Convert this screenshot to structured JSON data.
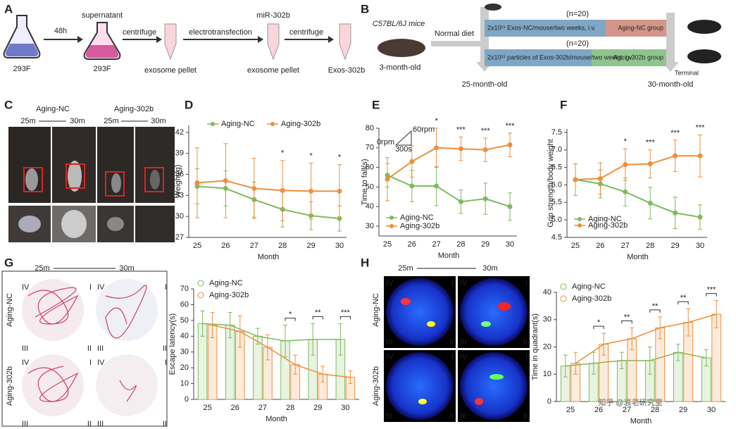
{
  "panel_a": {
    "label": "A",
    "flask1": "293F",
    "arrow1": "48h",
    "flask2_top": "supernatant",
    "flask2": "293F",
    "arrow2": "centrifuge",
    "tube1": "exosome pellet",
    "arrow3": "electrotransfection",
    "tube2_top": "miR-302b",
    "tube2": "exosome pellet",
    "arrow4": "centrifuge",
    "tube3": "Exos-302b"
  },
  "panel_b": {
    "label": "B",
    "strain": "C57BL/6J mice",
    "start_age": "3-month-old",
    "diet": "Normal diet",
    "n_nc": "(n=20)",
    "treat_nc": "2x10¹¹ Exos-NC/mouse/two weeks, i.v.",
    "group_nc": "Aging-NC group",
    "n_302b": "(n=20)",
    "treat_302b": "2x10¹¹ particles of Exos-302b/mouse/two weeks, i.v.",
    "group_302b": "Aging-302b group",
    "age_25": "25-month-old",
    "age_30": "30-month-old",
    "end": "Terminal"
  },
  "panel_c": {
    "label": "C",
    "group_nc": "Aging-NC",
    "group_302b": "Aging-302b",
    "t_start": "25m",
    "t_end": "30m"
  },
  "panel_g": {
    "label": "G",
    "t_start": "25m",
    "t_end": "30m",
    "row_nc": "Aging-NC",
    "row_302b": "Aging-302b",
    "quadrants": [
      "IV",
      "I",
      "III",
      "II"
    ]
  },
  "panel_h": {
    "label": "H",
    "t_start": "25m",
    "t_end": "30m",
    "row_nc": "Aging-NC",
    "row_302b": "Aging-302b",
    "quadrants": [
      "IV",
      "I",
      "III",
      "II"
    ]
  },
  "watermark": "知乎 @衰老研究室",
  "chart_data": [
    {
      "type": "line",
      "label": "D",
      "xlabel": "Month",
      "ylabel": "Weight(g)",
      "categories": [
        "25",
        "26",
        "27",
        "28",
        "29",
        "30"
      ],
      "ylim": [
        27,
        43
      ],
      "yticks": [
        27,
        30,
        33,
        36,
        39,
        42
      ],
      "legend": "upper center",
      "series": [
        {
          "name": "Aging-NC",
          "color": "#7dbb5c",
          "values": [
            34.3,
            34.0,
            32.4,
            31.0,
            30.1,
            29.7
          ],
          "errors": [
            2.5,
            2.5,
            2.5,
            2.5,
            2,
            1.8
          ]
        },
        {
          "name": "Aging-302b",
          "color": "#ee8f3c",
          "values": [
            34.8,
            35.1,
            34.0,
            33.7,
            33.6,
            33.6
          ],
          "errors": [
            5,
            5.3,
            4.3,
            4.3,
            4,
            3.8
          ]
        }
      ],
      "significance": [
        null,
        null,
        null,
        "*",
        "*",
        "*"
      ]
    },
    {
      "type": "line",
      "label": "E",
      "xlabel": "Month",
      "ylabel": "Time to fall(s)",
      "categories": [
        "25",
        "26",
        "27",
        "28",
        "29",
        "30"
      ],
      "ylim": [
        25,
        80
      ],
      "yticks": [
        30,
        40,
        50,
        60,
        70,
        80
      ],
      "legend": "lower left",
      "inset_labels": [
        "60rpm",
        "0rpm",
        "300s"
      ],
      "series": [
        {
          "name": "Aging-NC",
          "color": "#7dbb5c",
          "values": [
            56,
            50.5,
            50.5,
            42.5,
            44,
            40
          ],
          "errors": [
            6,
            8,
            10,
            6,
            8,
            7
          ]
        },
        {
          "name": "Aging-302b",
          "color": "#ee8f3c",
          "values": [
            54,
            63,
            70,
            69.5,
            69,
            71.5
          ],
          "errors": [
            11,
            8,
            10,
            6,
            6,
            6
          ]
        }
      ],
      "significance": [
        null,
        null,
        "*",
        "***",
        "***",
        "***"
      ]
    },
    {
      "type": "line",
      "label": "F",
      "xlabel": "Month",
      "ylabel": "Grip strength/body weight",
      "categories": [
        "25",
        "26",
        "27",
        "28",
        "29",
        "30"
      ],
      "ylim": [
        4.5,
        7.6
      ],
      "yticks": [
        {
          "value": 4.5,
          "label": "4.5"
        },
        {
          "value": 5,
          "label": "5.0"
        },
        {
          "value": 5.5,
          "label": "5.5"
        },
        {
          "value": 6,
          "label": "6.0"
        },
        {
          "value": 6.5,
          "label": "6.5"
        },
        {
          "value": 7,
          "label": "7.0"
        },
        {
          "value": 7.5,
          "label": "7.5"
        }
      ],
      "legend": "lower left",
      "series": [
        {
          "name": "Aging-NC",
          "color": "#7dbb5c",
          "values": [
            6.15,
            6.03,
            5.8,
            5.48,
            5.2,
            5.08
          ],
          "errors": [
            0.45,
            0.4,
            0.4,
            0.45,
            0.45,
            0.35
          ]
        },
        {
          "name": "Aging-302b",
          "color": "#ee8f3c",
          "values": [
            6.15,
            6.18,
            6.58,
            6.6,
            6.83,
            6.83
          ],
          "errors": [
            0.45,
            0.45,
            0.45,
            0.4,
            0.45,
            0.6
          ]
        }
      ],
      "significance": [
        null,
        null,
        "*",
        "***",
        "***",
        "***"
      ]
    },
    {
      "type": "bar",
      "xlabel": "Month",
      "ylabel": "Escape latency(s)",
      "categories": [
        "25",
        "26",
        "27",
        "28",
        "29",
        "30"
      ],
      "ylim": [
        0,
        70
      ],
      "yticks": [
        0,
        10,
        20,
        30,
        40,
        50,
        60,
        70
      ],
      "legend": "upper left",
      "series": [
        {
          "name": "Aging-NC",
          "color": "#7dbb5c",
          "values": [
            48,
            47,
            40,
            37,
            38,
            38
          ],
          "errors": [
            8,
            8,
            5,
            10,
            10,
            10
          ]
        },
        {
          "name": "Aging-302b",
          "color": "#ee8f3c",
          "values": [
            47,
            43,
            33,
            22,
            16,
            14
          ],
          "errors": [
            8,
            10,
            8,
            6,
            5,
            4
          ]
        }
      ],
      "significance": [
        null,
        null,
        null,
        "*",
        "**",
        "***"
      ]
    },
    {
      "type": "bar",
      "xlabel": "Month",
      "ylabel": "Time in quadrant(s)",
      "categories": [
        "25",
        "26",
        "27",
        "28",
        "29",
        "30"
      ],
      "ylim": [
        0,
        40
      ],
      "yticks": [
        0,
        10,
        20,
        30,
        40
      ],
      "legend": "upper left",
      "series": [
        {
          "name": "Aging-NC",
          "color": "#7dbb5c",
          "values": [
            13,
            14,
            15,
            15,
            18,
            16
          ],
          "errors": [
            4,
            4,
            3,
            5,
            3,
            3
          ]
        },
        {
          "name": "Aging-302b",
          "color": "#ee8f3c",
          "values": [
            14,
            21,
            23,
            27,
            29,
            32
          ],
          "errors": [
            4,
            4,
            4,
            4,
            5,
            5
          ]
        }
      ],
      "significance": [
        null,
        "*",
        "**",
        "**",
        "**",
        "***"
      ]
    }
  ]
}
